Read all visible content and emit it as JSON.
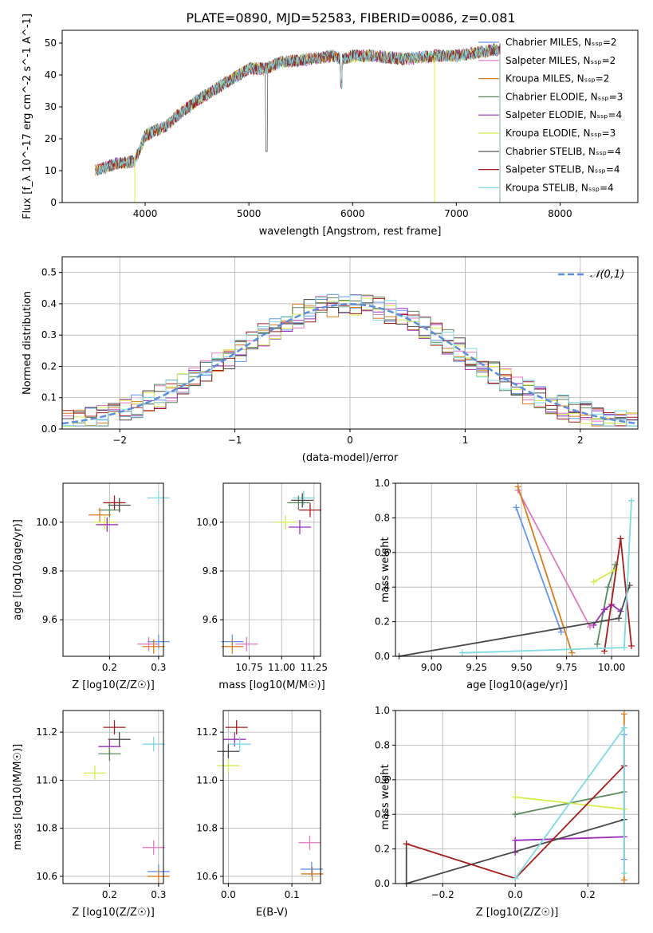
{
  "title": "PLATE=0890, MJD=52583, FIBERID=0086, z=0.081",
  "legend": [
    {
      "label": "Chabrier MILES, N_SSP=2",
      "color": "#6495ED"
    },
    {
      "label": "Salpeter MILES, N_SSP=2",
      "color": "#E377C2"
    },
    {
      "label": "Kroupa MILES, N_SSP=2",
      "color": "#D97C1A"
    },
    {
      "label": "Chabrier ELODIE, N_SSP=3",
      "color": "#5B8A5E"
    },
    {
      "label": "Salpeter ELODIE, N_SSP=4",
      "color": "#9B30B5"
    },
    {
      "label": "Kroupa ELODIE, N_SSP=3",
      "color": "#D6EC4A"
    },
    {
      "label": "Chabrier STELIB, N_SSP=4",
      "color": "#4A4A4A"
    },
    {
      "label": "Salpeter STELIB, N_SSP=4",
      "color": "#A51D1D"
    },
    {
      "label": "Kroupa STELIB, N_SSP=4",
      "color": "#7FD9E0"
    }
  ],
  "chart_data": [
    {
      "id": "spectrum",
      "type": "line",
      "xlabel": "wavelength [Angstrom, rest frame]",
      "ylabel": "Flux [f_λ 10^-17 erg cm^-2 s^-1 A^-1]",
      "xlim": [
        3200,
        8750
      ],
      "ylim": [
        0,
        54
      ],
      "xticks": [
        4000,
        5000,
        6000,
        7000,
        8000
      ],
      "yticks": [
        0,
        10,
        20,
        30,
        40,
        50
      ],
      "x": [
        3520,
        3700,
        3900,
        4000,
        4200,
        4300,
        4500,
        4800,
        5000,
        5170,
        5300,
        5600,
        5800,
        5900,
        6000,
        6200,
        6500,
        6800,
        7000,
        7200,
        7400
      ],
      "y": [
        10,
        12,
        13,
        21,
        24,
        27,
        32,
        38,
        42,
        42,
        44,
        45,
        46,
        45,
        46,
        46,
        45,
        46,
        46,
        47,
        48
      ],
      "cutoff_x": 7420,
      "grid": false
    },
    {
      "id": "residual-hist",
      "type": "bar",
      "xlabel": "(data-model)/error",
      "ylabel": "Normed distribution",
      "xlim": [
        -2.5,
        2.5
      ],
      "ylim": [
        0,
        0.55
      ],
      "xticks": [
        -2,
        -1,
        0,
        1,
        2
      ],
      "yticks": [
        0.0,
        0.1,
        0.2,
        0.3,
        0.4,
        0.5
      ],
      "reference": {
        "label": "𝒩(0,1)",
        "mean": 0,
        "sigma": 1,
        "color": "#5B8FDB"
      },
      "grid": true
    },
    {
      "id": "age-vs-z",
      "type": "scatter",
      "xlabel": "Z [log10(Z/Z☉)]",
      "ylabel": "age [log10(age/yr)]",
      "xlim": [
        0.105,
        0.31
      ],
      "ylim": [
        9.45,
        10.16
      ],
      "xticks": [
        0.2,
        0.3
      ],
      "yticks": [
        9.6,
        9.8,
        10.0
      ],
      "points": [
        {
          "x": 0.3,
          "y": 10.1,
          "c": 8
        },
        {
          "x": 0.21,
          "y": 10.08,
          "c": 7
        },
        {
          "x": 0.22,
          "y": 10.07,
          "c": 6
        },
        {
          "x": 0.2,
          "y": 10.05,
          "c": 3
        },
        {
          "x": 0.18,
          "y": 10.03,
          "c": 2
        },
        {
          "x": 0.19,
          "y": 10.0,
          "c": 5
        },
        {
          "x": 0.195,
          "y": 9.99,
          "c": 4
        },
        {
          "x": 0.3,
          "y": 9.51,
          "c": 0
        },
        {
          "x": 0.28,
          "y": 9.5,
          "c": 1
        },
        {
          "x": 0.29,
          "y": 9.49,
          "c": 2
        }
      ],
      "grid": true
    },
    {
      "id": "age-vs-mass",
      "type": "scatter",
      "xlabel": "mass [log10(M/M☉)]",
      "ylabel": "",
      "xlim": [
        10.55,
        11.3
      ],
      "ylim": [
        9.45,
        10.16
      ],
      "xticks": [
        10.75,
        11.0,
        11.25
      ],
      "yticks": [
        9.6,
        9.8,
        10.0
      ],
      "points": [
        {
          "x": 11.17,
          "y": 10.1,
          "c": 8
        },
        {
          "x": 11.22,
          "y": 10.05,
          "c": 7
        },
        {
          "x": 11.13,
          "y": 10.08,
          "c": 3
        },
        {
          "x": 11.14,
          "y": 9.98,
          "c": 4
        },
        {
          "x": 11.03,
          "y": 10.0,
          "c": 5
        },
        {
          "x": 11.16,
          "y": 10.09,
          "c": 6
        },
        {
          "x": 10.62,
          "y": 9.51,
          "c": 0
        },
        {
          "x": 10.73,
          "y": 9.5,
          "c": 1
        },
        {
          "x": 10.62,
          "y": 9.49,
          "c": 2
        }
      ],
      "grid": true
    },
    {
      "id": "weight-vs-age",
      "type": "line",
      "xlabel": "age [log10(age/yr)]",
      "ylabel": "mass weight",
      "xlim": [
        8.8,
        10.15
      ],
      "ylim": [
        0,
        1.0
      ],
      "xticks": [
        9.0,
        9.25,
        9.5,
        9.75,
        10.0
      ],
      "yticks": [
        0.0,
        0.2,
        0.4,
        0.6,
        0.8,
        1.0
      ],
      "series": [
        {
          "c": 0,
          "x": [
            9.47,
            9.72
          ],
          "y": [
            0.86,
            0.14
          ]
        },
        {
          "c": 1,
          "x": [
            9.48,
            9.88
          ],
          "y": [
            0.96,
            0.17
          ]
        },
        {
          "c": 2,
          "x": [
            9.48,
            9.78
          ],
          "y": [
            0.98,
            0.02
          ]
        },
        {
          "c": 3,
          "x": [
            9.92,
            9.98,
            10.02
          ],
          "y": [
            0.07,
            0.4,
            0.53
          ]
        },
        {
          "c": 4,
          "x": [
            9.9,
            9.96,
            10.0,
            10.05
          ],
          "y": [
            0.18,
            0.27,
            0.3,
            0.26
          ]
        },
        {
          "c": 5,
          "x": [
            9.9,
            10.02
          ],
          "y": [
            0.43,
            0.5
          ]
        },
        {
          "c": 6,
          "x": [
            8.82,
            10.04,
            10.1
          ],
          "y": [
            0.0,
            0.22,
            0.41
          ]
        },
        {
          "c": 7,
          "x": [
            9.96,
            10.05,
            10.11
          ],
          "y": [
            0.03,
            0.68,
            0.06
          ]
        },
        {
          "c": 8,
          "x": [
            9.17,
            10.07,
            10.11
          ],
          "y": [
            0.02,
            0.05,
            0.9
          ]
        }
      ],
      "grid": true
    },
    {
      "id": "mass-vs-z",
      "type": "scatter",
      "xlabel": "Z [log10(Z/Z☉)]",
      "ylabel": "mass [log10(M/M☉)]",
      "xlim": [
        0.105,
        0.31
      ],
      "ylim": [
        10.57,
        11.29
      ],
      "xticks": [
        0.2,
        0.3
      ],
      "yticks": [
        10.6,
        10.8,
        11.0,
        11.2
      ],
      "points": [
        {
          "x": 0.21,
          "y": 11.22,
          "c": 7
        },
        {
          "x": 0.22,
          "y": 11.17,
          "c": 6
        },
        {
          "x": 0.29,
          "y": 11.15,
          "c": 8
        },
        {
          "x": 0.2,
          "y": 11.14,
          "c": 4
        },
        {
          "x": 0.2,
          "y": 11.11,
          "c": 3
        },
        {
          "x": 0.17,
          "y": 11.03,
          "c": 5
        },
        {
          "x": 0.29,
          "y": 10.72,
          "c": 1
        },
        {
          "x": 0.3,
          "y": 10.62,
          "c": 0
        },
        {
          "x": 0.3,
          "y": 10.6,
          "c": 2
        }
      ],
      "grid": true
    },
    {
      "id": "mass-vs-ebv",
      "type": "scatter",
      "xlabel": "E(B-V)",
      "ylabel": "",
      "xlim": [
        -0.008,
        0.145
      ],
      "ylim": [
        10.57,
        11.29
      ],
      "xticks": [
        0.0,
        0.1
      ],
      "yticks": [
        10.6,
        10.8,
        11.0,
        11.2
      ],
      "points": [
        {
          "x": 0.013,
          "y": 11.22,
          "c": 7
        },
        {
          "x": 0.01,
          "y": 11.17,
          "c": 4
        },
        {
          "x": 0.018,
          "y": 11.15,
          "c": 8
        },
        {
          "x": 0.0,
          "y": 11.12,
          "c": 6
        },
        {
          "x": 0.0,
          "y": 11.06,
          "c": 5
        },
        {
          "x": 0.128,
          "y": 10.74,
          "c": 1
        },
        {
          "x": 0.131,
          "y": 10.63,
          "c": 0
        },
        {
          "x": 0.132,
          "y": 10.61,
          "c": 2
        }
      ],
      "grid": true
    },
    {
      "id": "weight-vs-z",
      "type": "line",
      "xlabel": "Z [log10(Z/Z☉)]",
      "ylabel": "mass weight",
      "xlim": [
        -0.33,
        0.34
      ],
      "ylim": [
        0,
        1.0
      ],
      "xticks": [
        -0.2,
        0.0,
        0.2
      ],
      "yticks": [
        0.0,
        0.2,
        0.4,
        0.6,
        0.8,
        1.0
      ],
      "series": [
        {
          "c": 0,
          "x": [
            0.3,
            0.3
          ],
          "y": [
            0.86,
            0.14
          ]
        },
        {
          "c": 2,
          "x": [
            0.3,
            0.3
          ],
          "y": [
            0.98,
            0.02
          ]
        },
        {
          "c": 3,
          "x": [
            0.0,
            0.3
          ],
          "y": [
            0.4,
            0.53
          ]
        },
        {
          "c": 4,
          "x": [
            0.0,
            0.0,
            0.3
          ],
          "y": [
            0.18,
            0.25,
            0.27
          ]
        },
        {
          "c": 5,
          "x": [
            0.0,
            0.3
          ],
          "y": [
            0.5,
            0.43
          ]
        },
        {
          "c": 6,
          "x": [
            -0.3,
            -0.3,
            0.3
          ],
          "y": [
            0.23,
            0.0,
            0.37
          ]
        },
        {
          "c": 7,
          "x": [
            -0.3,
            0.0,
            0.3
          ],
          "y": [
            0.23,
            0.03,
            0.68
          ]
        },
        {
          "c": 8,
          "x": [
            0.0,
            0.3,
            0.3
          ],
          "y": [
            0.03,
            0.9,
            0.06
          ]
        }
      ],
      "grid": true
    }
  ]
}
